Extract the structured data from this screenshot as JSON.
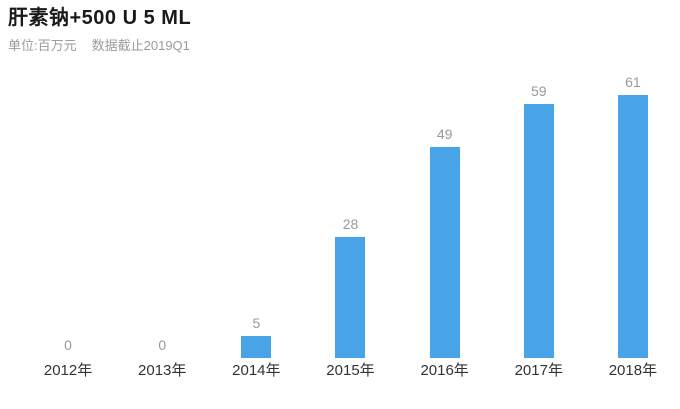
{
  "header": {
    "title": "肝素钠+500 U 5 ML",
    "unit_label": "单位:百万元",
    "cutoff_label": "数据截止2019Q1"
  },
  "chart_data": {
    "type": "bar",
    "title": "肝素钠+500 U 5 ML",
    "subtitle": "单位:百万元  数据截止2019Q1",
    "categories": [
      "2012年",
      "2013年",
      "2014年",
      "2015年",
      "2016年",
      "2017年",
      "2018年"
    ],
    "values": [
      0,
      0,
      5,
      28,
      49,
      59,
      61
    ],
    "xlabel": "",
    "ylabel": "单位:百万元",
    "ylim": [
      0,
      65
    ],
    "grid": false,
    "legend": false,
    "value_labels_shown": true,
    "colors": {
      "bar": "#49a3e7",
      "value_label": "#999999",
      "category_label": "#333333",
      "title": "#1a1a1a",
      "subtitle": "#9b9b9b",
      "background": "#ffffff"
    }
  }
}
